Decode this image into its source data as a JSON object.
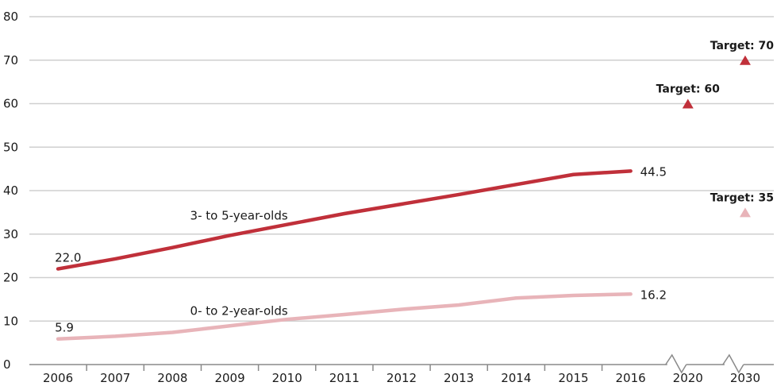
{
  "chart_data": {
    "type": "line",
    "title": "",
    "xlabel": "",
    "ylabel": "",
    "categories": [
      "2006",
      "2007",
      "2008",
      "2009",
      "2010",
      "2011",
      "2012",
      "2013",
      "2014",
      "2015",
      "2016",
      "2020",
      "2030"
    ],
    "yticks": [
      "0",
      "10",
      "20",
      "30",
      "40",
      "50",
      "60",
      "70",
      "80"
    ],
    "ylim": [
      0,
      80
    ],
    "grid": true,
    "axis_break": "between 2016 and 2020, and between 2020 and 2030",
    "series": [
      {
        "name": "3- to 5-year-olds",
        "color": "#c0303a",
        "x": [
          "2006",
          "2007",
          "2008",
          "2009",
          "2010",
          "2011",
          "2012",
          "2013",
          "2014",
          "2015",
          "2016"
        ],
        "values": [
          22.0,
          24.3,
          26.9,
          29.7,
          32.2,
          34.7,
          36.9,
          39.1,
          41.4,
          43.7,
          44.5
        ],
        "first_label": "22.0",
        "last_label": "44.5"
      },
      {
        "name": "0- to 2-year-olds",
        "color": "#e8b4b9",
        "x": [
          "2006",
          "2007",
          "2008",
          "2009",
          "2010",
          "2011",
          "2012",
          "2013",
          "2014",
          "2015",
          "2016"
        ],
        "values": [
          5.9,
          6.5,
          7.4,
          8.9,
          10.4,
          11.5,
          12.7,
          13.7,
          15.3,
          15.9,
          16.2
        ],
        "first_label": "5.9",
        "last_label": "16.2"
      }
    ],
    "targets": [
      {
        "x": "2030",
        "value": 70,
        "label": "Target: 70",
        "color": "#c0303a"
      },
      {
        "x": "2020",
        "value": 60,
        "label": "Target: 60",
        "color": "#c0303a"
      },
      {
        "x": "2030",
        "value": 35,
        "label": "Target: 35",
        "color": "#e8b4b9"
      }
    ],
    "colors": {
      "grid": "#cfcfcf",
      "axis": "#8a8a8a",
      "text": "#1a1a1a"
    }
  }
}
